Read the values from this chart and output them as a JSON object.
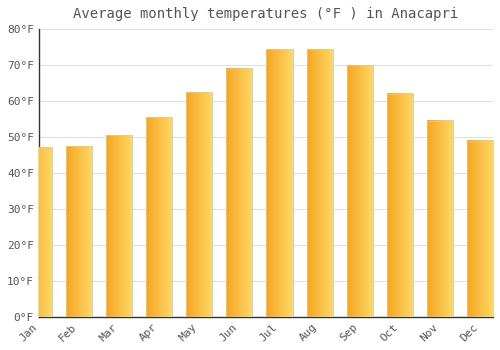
{
  "title": "Average monthly temperatures (°F ) in Anacapri",
  "months": [
    "Jan",
    "Feb",
    "Mar",
    "Apr",
    "May",
    "Jun",
    "Jul",
    "Aug",
    "Sep",
    "Oct",
    "Nov",
    "Dec"
  ],
  "values": [
    47,
    47.5,
    50.5,
    55.5,
    62.5,
    69,
    74.5,
    74.5,
    70,
    62,
    54.5,
    49
  ],
  "bar_color_left": "#F5A623",
  "bar_color_right": "#FFD966",
  "bar_edge_color": "#CCCCCC",
  "background_color": "#FFFFFF",
  "grid_color": "#E0E0E0",
  "ylim": [
    0,
    80
  ],
  "yticks": [
    0,
    10,
    20,
    30,
    40,
    50,
    60,
    70,
    80
  ],
  "ytick_labels": [
    "0°F",
    "10°F",
    "20°F",
    "30°F",
    "40°F",
    "50°F",
    "60°F",
    "70°F",
    "80°F"
  ],
  "title_fontsize": 10,
  "tick_fontsize": 8,
  "font_family": "monospace",
  "text_color": "#555555"
}
